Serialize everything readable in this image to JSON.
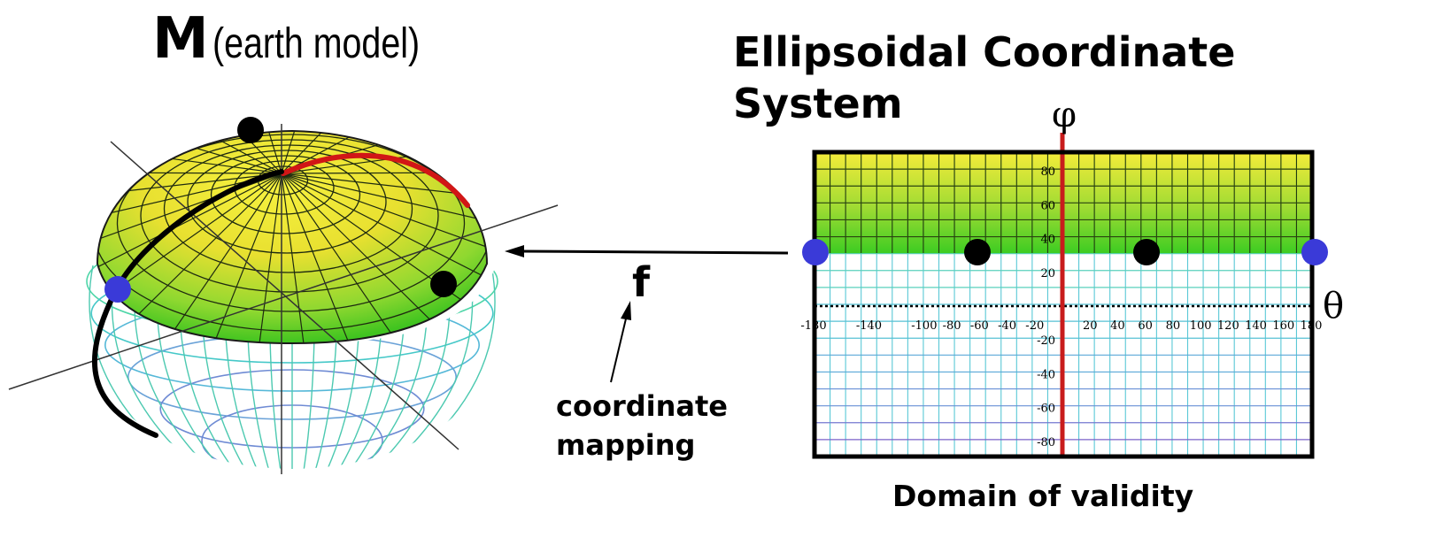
{
  "titles": {
    "manifold_symbol": "M",
    "manifold_caption": "(earth model)",
    "coordinate_system": "Ellipsoidal Coordinate System"
  },
  "mapping": {
    "function_symbol": "f",
    "caption": "coordinate mapping"
  },
  "chart": {
    "caption": "Domain of validity",
    "vertical_axis_symbol": "φ",
    "horizontal_axis_symbol": "θ",
    "x_tick_labels": [
      "-180",
      "-140",
      "-100",
      "-80",
      "-60",
      "-40",
      "-20",
      "20",
      "40",
      "60",
      "80",
      "100",
      "120",
      "140",
      "160",
      "180"
    ],
    "y_tick_labels": [
      "80",
      "60",
      "40",
      "20",
      "-20",
      "-40",
      "-60",
      "-80"
    ],
    "domain_min_latitude": 30,
    "marked_points_longitude": [
      -180,
      -60,
      60,
      180
    ]
  },
  "colors": {
    "north_pole_marker": "#000000",
    "sample_points": "#000000",
    "boundary_points": "#3a3ad8",
    "red_meridian": "#cc1a1a",
    "black_meridian": "#000000",
    "upper_band_top": "#f2e830",
    "upper_band_bottom": "#3fcf20",
    "lower_mesh_top": "#5fd6b8",
    "lower_mesh_bottom": "#6a4fc0"
  }
}
